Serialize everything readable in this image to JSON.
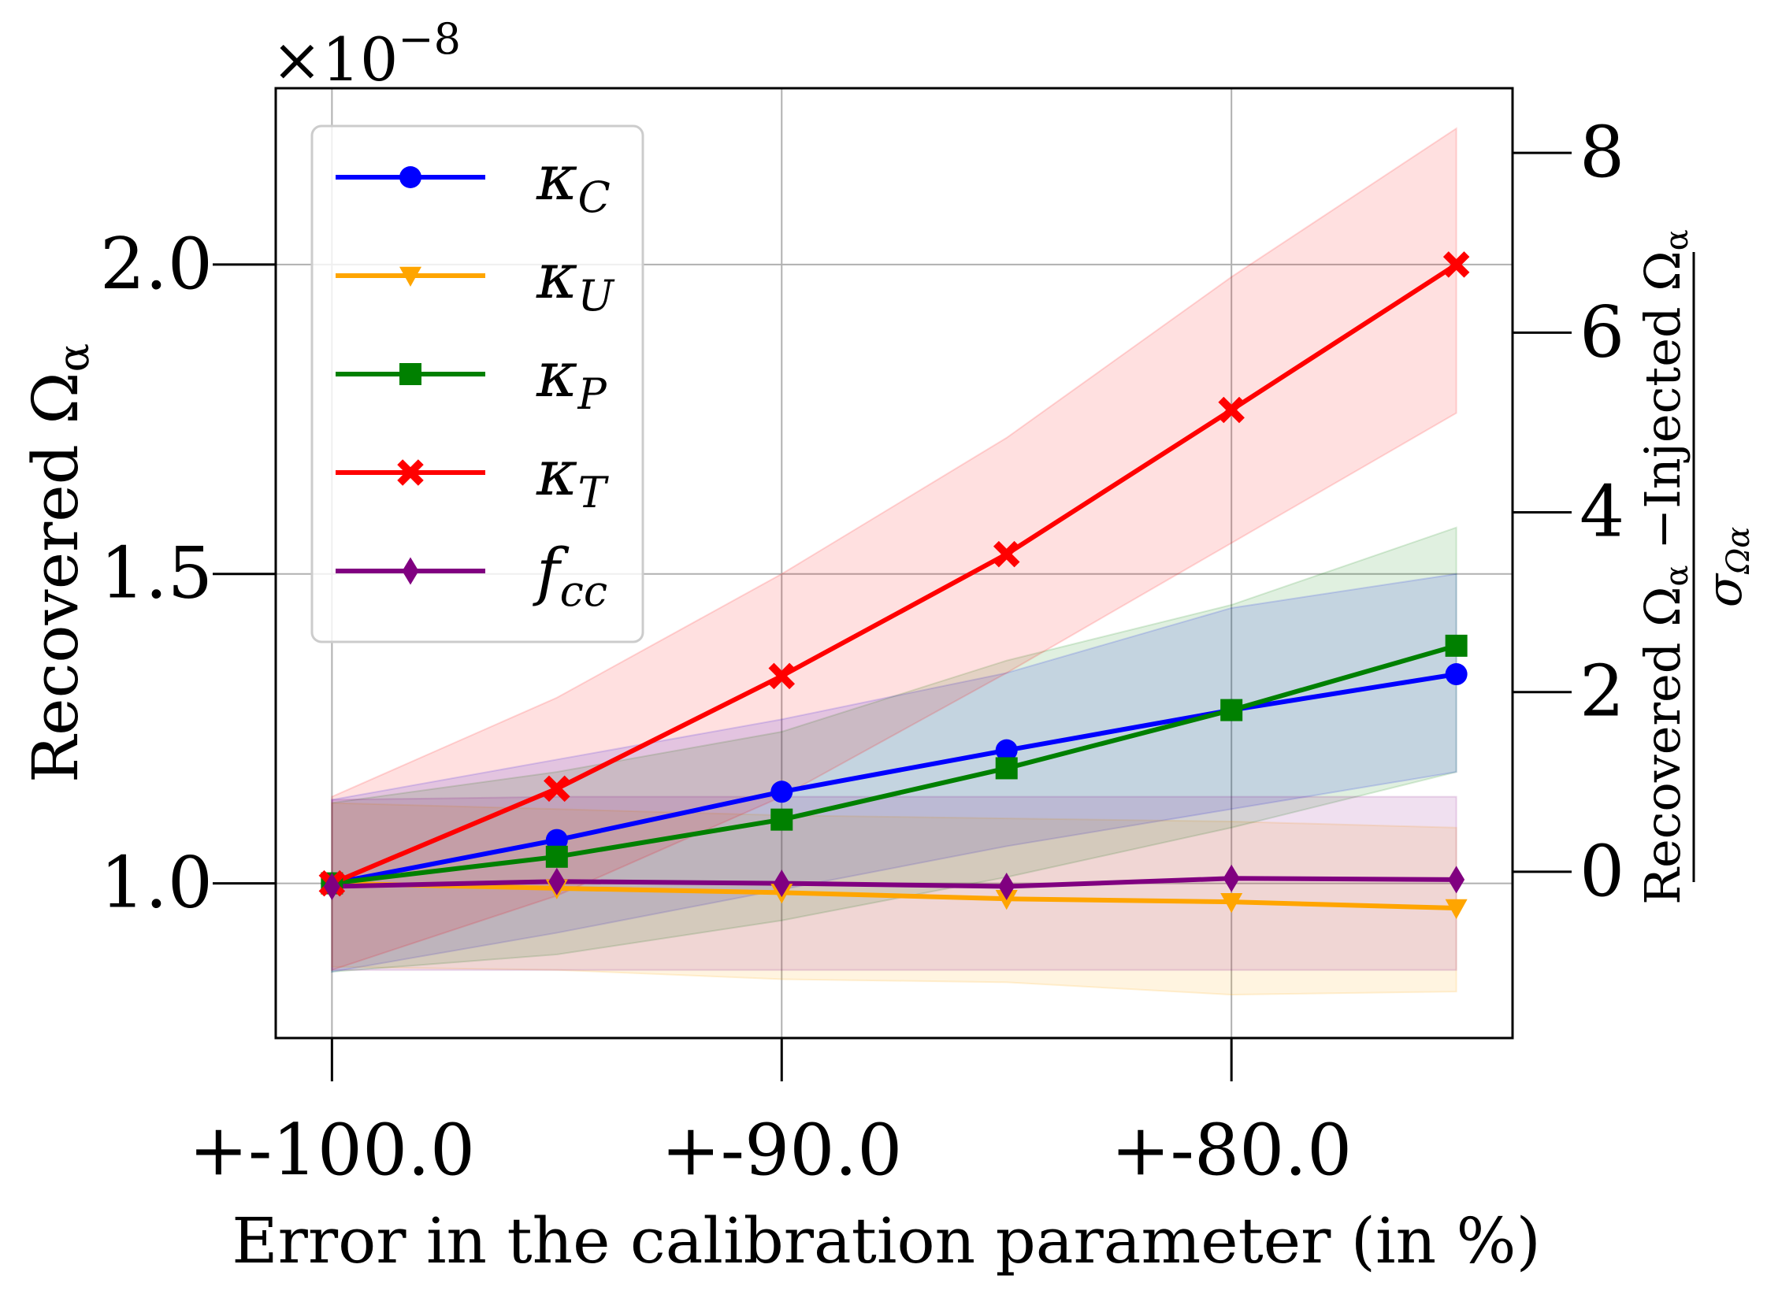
{
  "chart_data": {
    "type": "line",
    "xlabel": "Error in the calibration parameter (in %)",
    "ylabel": "Recovered Ω",
    "ylabel_sub": "α",
    "ylabel_right_numerator": "Recovered Ω",
    "ylabel_right_numerator_sub": "α",
    "ylabel_right_mid": " −Injected Ω",
    "ylabel_right_mid_sub": "α",
    "ylabel_right_denominator": "σ",
    "ylabel_right_denominator_sub": "Ωα",
    "y_scale_exponent_label": "×10",
    "y_scale_exponent_power": "−8",
    "x": [
      -100,
      -95,
      -90,
      -85,
      -80,
      -75
    ],
    "xlim": [
      -101.25,
      -73.75
    ],
    "ylim": [
      0.75,
      2.285
    ],
    "xticks": [
      -100,
      -90,
      -80
    ],
    "xtick_labels": [
      "+-100.0",
      "+-90.0",
      "+-80.0"
    ],
    "yticks": [
      1.0,
      1.5,
      2.0
    ],
    "ytick_labels": [
      "1.0",
      "1.5",
      "2.0"
    ],
    "y2lim": [
      -1.85,
      8.72
    ],
    "y2ticks": [
      0,
      2,
      4,
      6,
      8
    ],
    "y2tick_labels": [
      "0",
      "2",
      "4",
      "6",
      "8"
    ],
    "grid": true,
    "legend_position": "upper-left",
    "series": [
      {
        "name": "κ",
        "sub": "C",
        "color": "#0000ff",
        "marker": "circle",
        "values": [
          1.0,
          1.07,
          1.148,
          1.215,
          1.28,
          1.338
        ],
        "band_low": [
          0.857,
          0.92,
          0.99,
          1.06,
          1.12,
          1.18
        ],
        "band_high": [
          1.135,
          1.2,
          1.265,
          1.34,
          1.445,
          1.5
        ]
      },
      {
        "name": "κ",
        "sub": "U",
        "color": "#ffa500",
        "marker": "triangle-down",
        "values": [
          1.0,
          0.992,
          0.985,
          0.975,
          0.97,
          0.96
        ],
        "band_low": [
          0.865,
          0.86,
          0.845,
          0.84,
          0.82,
          0.825
        ],
        "band_high": [
          1.13,
          1.12,
          1.11,
          1.105,
          1.1,
          1.09
        ]
      },
      {
        "name": "κ",
        "sub": "P",
        "color": "#008000",
        "marker": "square",
        "values": [
          1.0,
          1.043,
          1.103,
          1.186,
          1.28,
          1.384
        ],
        "band_low": [
          0.857,
          0.885,
          0.94,
          1.01,
          1.09,
          1.18
        ],
        "band_high": [
          1.13,
          1.18,
          1.245,
          1.36,
          1.45,
          1.575
        ]
      },
      {
        "name": "κ",
        "sub": "T",
        "color": "#ff0000",
        "marker": "x",
        "values": [
          1.0,
          1.153,
          1.335,
          1.532,
          1.765,
          2.0
        ],
        "band_low": [
          0.86,
          0.98,
          1.14,
          1.34,
          1.55,
          1.76
        ],
        "band_high": [
          1.14,
          1.3,
          1.5,
          1.72,
          1.98,
          2.22
        ]
      },
      {
        "name": "f",
        "sub": "cc",
        "color": "#800080",
        "marker": "diamond",
        "values": [
          0.995,
          1.003,
          1.0,
          0.995,
          1.008,
          1.006
        ],
        "band_low": [
          0.86,
          0.86,
          0.86,
          0.86,
          0.86,
          0.86
        ],
        "band_high": [
          1.135,
          1.14,
          1.14,
          1.14,
          1.14,
          1.14
        ]
      }
    ]
  }
}
